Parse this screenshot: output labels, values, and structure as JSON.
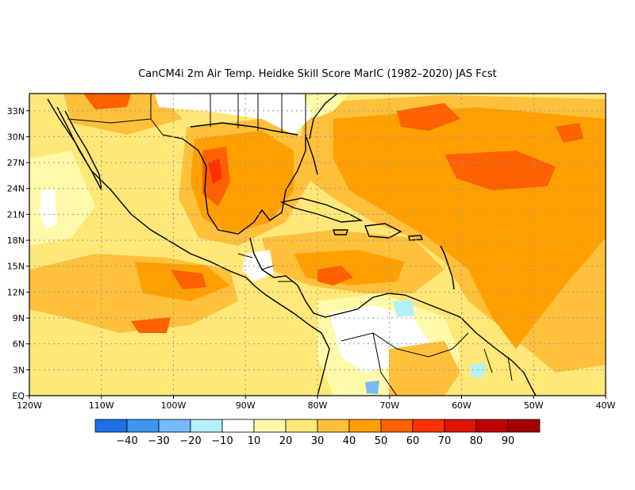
{
  "title": "CanCM4i  2m Air Temp. Heidke Skill Score MarIC (1982–2020) JAS Fcst",
  "map": {
    "lon_range": [
      -120,
      -40
    ],
    "lat_range": [
      0,
      35
    ],
    "lon_ticks": [
      {
        "value": -120,
        "label": "120W"
      },
      {
        "value": -110,
        "label": "110W"
      },
      {
        "value": -100,
        "label": "100W"
      },
      {
        "value": -90,
        "label": "90W"
      },
      {
        "value": -80,
        "label": "80W"
      },
      {
        "value": -70,
        "label": "70W"
      },
      {
        "value": -60,
        "label": "60W"
      },
      {
        "value": -50,
        "label": "50W"
      },
      {
        "value": -40,
        "label": "40W"
      }
    ],
    "lat_ticks": [
      {
        "value": 0,
        "label": "EQ"
      },
      {
        "value": 3,
        "label": "3N"
      },
      {
        "value": 6,
        "label": "6N"
      },
      {
        "value": 9,
        "label": "9N"
      },
      {
        "value": 12,
        "label": "12N"
      },
      {
        "value": 15,
        "label": "15N"
      },
      {
        "value": 18,
        "label": "18N"
      },
      {
        "value": 21,
        "label": "21N"
      },
      {
        "value": 24,
        "label": "24N"
      },
      {
        "value": 27,
        "label": "27N"
      },
      {
        "value": 30,
        "label": "30N"
      },
      {
        "value": 33,
        "label": "33N"
      }
    ],
    "grid": true
  },
  "colorbar": {
    "colors": [
      "#1e6ee6",
      "#3c96f0",
      "#78b9fa",
      "#b4f0fa",
      "#ffffff",
      "#fffaaa",
      "#ffe878",
      "#ffc03c",
      "#ffa000",
      "#ff6000",
      "#ff3200",
      "#e11400",
      "#c00000",
      "#a50000"
    ],
    "labels": [
      "−40",
      "−30",
      "−20",
      "−10",
      "10",
      "20",
      "30",
      "40",
      "50",
      "60",
      "70",
      "80",
      "90"
    ]
  }
}
